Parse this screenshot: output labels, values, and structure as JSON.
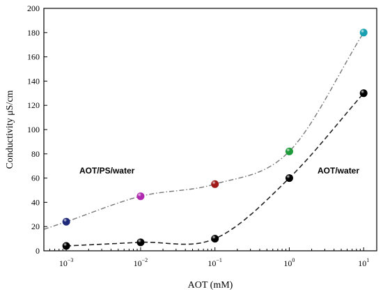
{
  "chart_data": {
    "type": "scatter",
    "xlabel": "AOT (mM)",
    "ylabel": "Conductivity μS/cm",
    "xscale": "log",
    "xlim": [
      0.0005,
      15
    ],
    "ylim": [
      0,
      200
    ],
    "x_ticks": [
      {
        "value": 0.001,
        "base": "10",
        "exp": "−3"
      },
      {
        "value": 0.01,
        "base": "10",
        "exp": "−2"
      },
      {
        "value": 0.1,
        "base": "10",
        "exp": "−1"
      },
      {
        "value": 1,
        "base": "10",
        "exp": "0"
      },
      {
        "value": 10,
        "base": "10",
        "exp": "1"
      }
    ],
    "y_ticks": [
      0,
      20,
      40,
      60,
      80,
      100,
      120,
      140,
      160,
      180,
      200
    ],
    "grid": false,
    "annotations": [
      {
        "text": "AOT/PS/water",
        "x": 0.0015,
        "y": 66
      },
      {
        "text": "AOT/water",
        "x": 2.4,
        "y": 66
      }
    ],
    "series": [
      {
        "name": "AOT/PS/water",
        "line_style": "dash-dot",
        "line_color": "#777777",
        "x": [
          0.001,
          0.01,
          0.1,
          1,
          10
        ],
        "y": [
          24,
          45,
          55,
          82,
          180
        ],
        "point_colors": [
          "#1f2a7a",
          "#b02ab0",
          "#a01818",
          "#1e9a3a",
          "#1aa0b0"
        ]
      },
      {
        "name": "AOT/water",
        "line_style": "dashed",
        "line_color": "#222222",
        "x": [
          0.001,
          0.01,
          0.1,
          1,
          10
        ],
        "y": [
          4,
          7,
          10,
          60,
          130
        ],
        "point_colors": [
          "#000000",
          "#000000",
          "#000000",
          "#000000",
          "#000000"
        ]
      }
    ]
  }
}
